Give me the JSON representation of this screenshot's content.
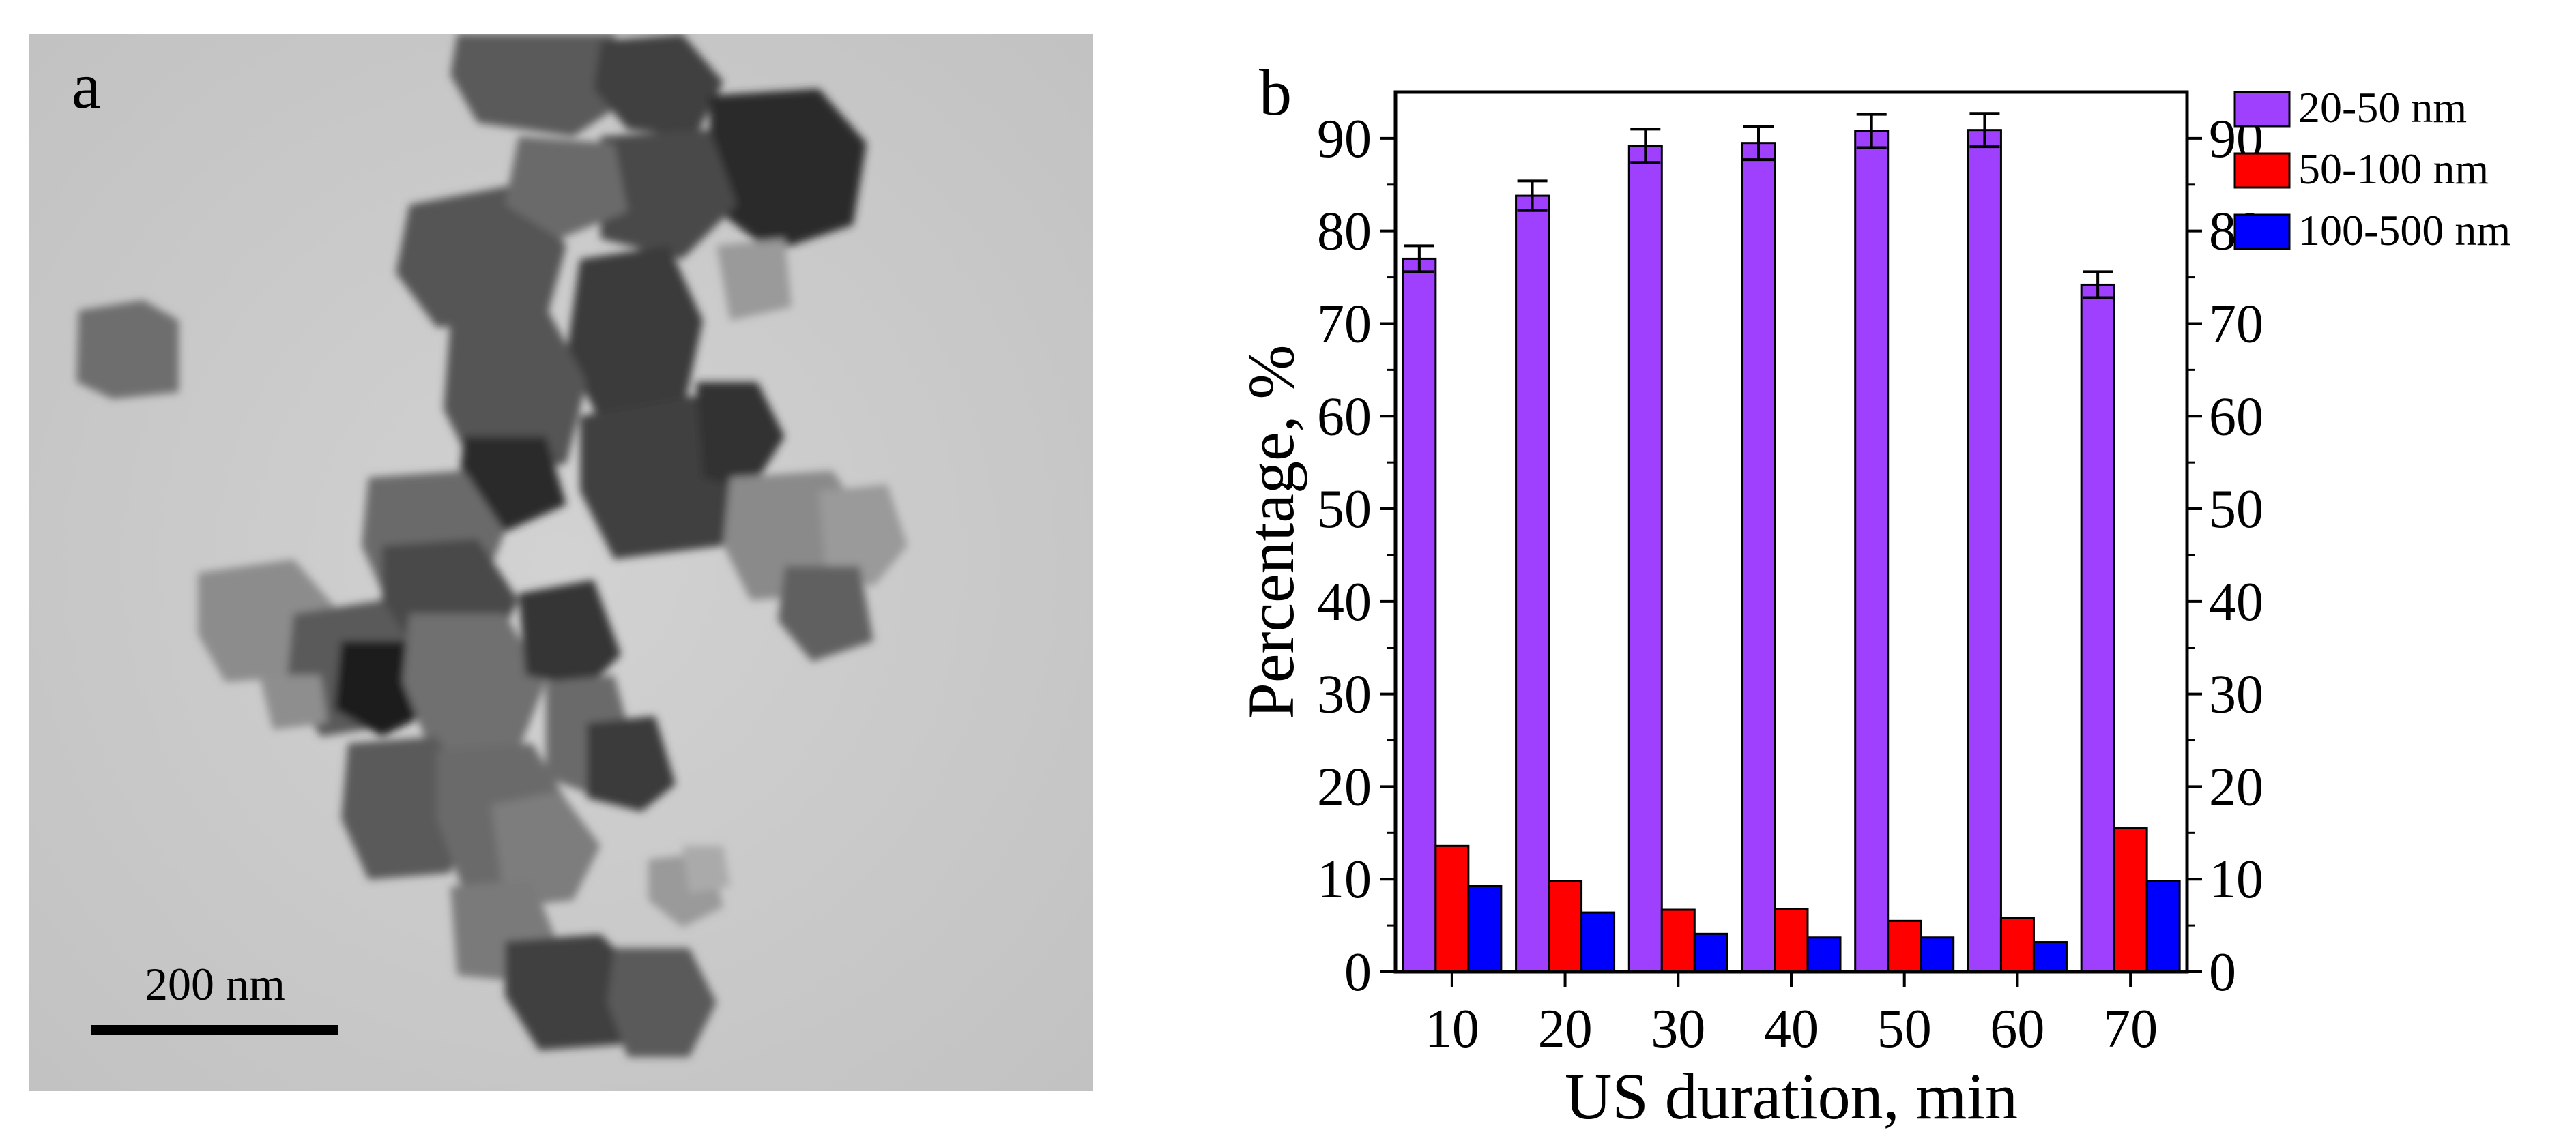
{
  "panel_a": {
    "label": "a",
    "scale_bar_label": "200 nm"
  },
  "panel_b": {
    "label": "b"
  },
  "chart_data": {
    "type": "bar",
    "title": "",
    "xlabel": "US duration, min",
    "ylabel": "Percentage, %",
    "categories": [
      "10",
      "20",
      "30",
      "40",
      "50",
      "60",
      "70"
    ],
    "ylim": [
      0,
      95
    ],
    "yticks": [
      0,
      10,
      20,
      30,
      40,
      50,
      60,
      70,
      80,
      90
    ],
    "right_axis": true,
    "grid": false,
    "legend_position": "top-right, outside",
    "series": [
      {
        "name": "20-50 nm",
        "color": "#a040ff",
        "values": [
          77.0,
          83.8,
          89.2,
          89.5,
          90.8,
          90.9,
          74.2
        ],
        "errors": [
          1.4,
          1.6,
          1.8,
          1.8,
          1.8,
          1.8,
          1.4
        ]
      },
      {
        "name": "50-100 nm",
        "color": "#ff0000",
        "values": [
          13.6,
          9.8,
          6.7,
          6.8,
          5.5,
          5.8,
          15.5
        ],
        "errors": [
          0,
          0,
          0,
          0,
          0,
          0,
          0
        ]
      },
      {
        "name": "100-500 nm",
        "color": "#0000ff",
        "values": [
          9.3,
          6.4,
          4.1,
          3.7,
          3.7,
          3.2,
          9.8
        ],
        "errors": [
          0,
          0,
          0,
          0,
          0,
          0,
          0
        ]
      }
    ]
  }
}
